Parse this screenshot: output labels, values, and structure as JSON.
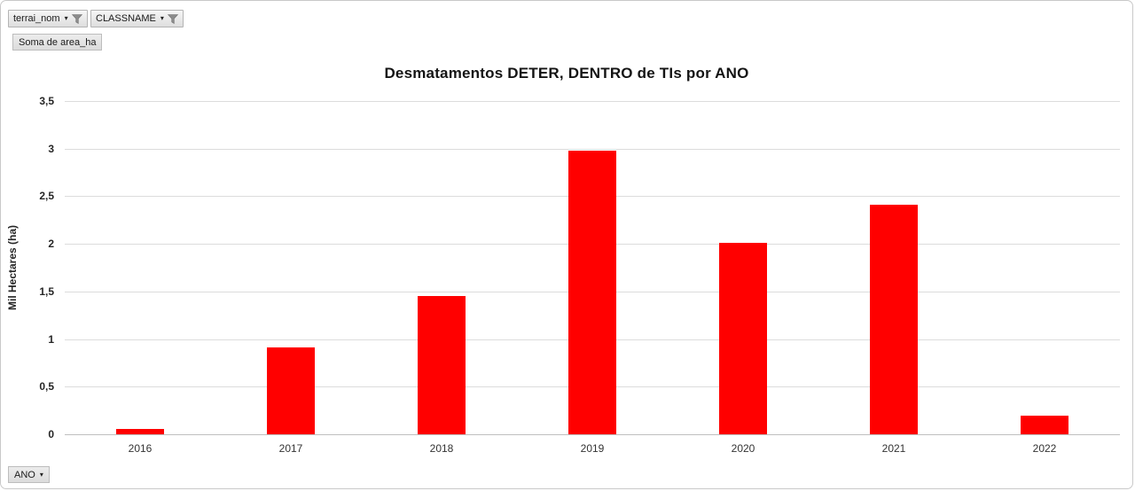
{
  "pivot_fields": {
    "terrai_nom": {
      "label": "terrai_nom"
    },
    "classname": {
      "label": "CLASSNAME"
    },
    "value_field": {
      "label": "Soma de area_ha"
    },
    "axis_field": {
      "label": "ANO"
    }
  },
  "chart_data": {
    "type": "bar",
    "title": "Desmatamentos DETER, DENTRO de TIs por ANO",
    "categories": [
      "2016",
      "2017",
      "2018",
      "2019",
      "2020",
      "2021",
      "2022"
    ],
    "values": [
      0.06,
      0.91,
      1.45,
      2.98,
      2.01,
      2.41,
      0.2
    ],
    "xlabel": "",
    "ylabel": "Mil Hectares (ha)",
    "ylim": [
      0,
      3.5
    ],
    "ytick_step": 0.5,
    "ytick_labels": [
      "0",
      "0,5",
      "1",
      "1,5",
      "2",
      "2,5",
      "3",
      "3,5"
    ],
    "bar_color": "#ff0000",
    "grid": true,
    "legend_position": "none"
  },
  "colors": {
    "bar": "#ff0000",
    "gridline": "#dcdcdc",
    "baseline": "#bfbfbf",
    "button_border": "#b4b4b4"
  },
  "icons": {
    "filter": "funnel",
    "dropdown": "▾"
  }
}
